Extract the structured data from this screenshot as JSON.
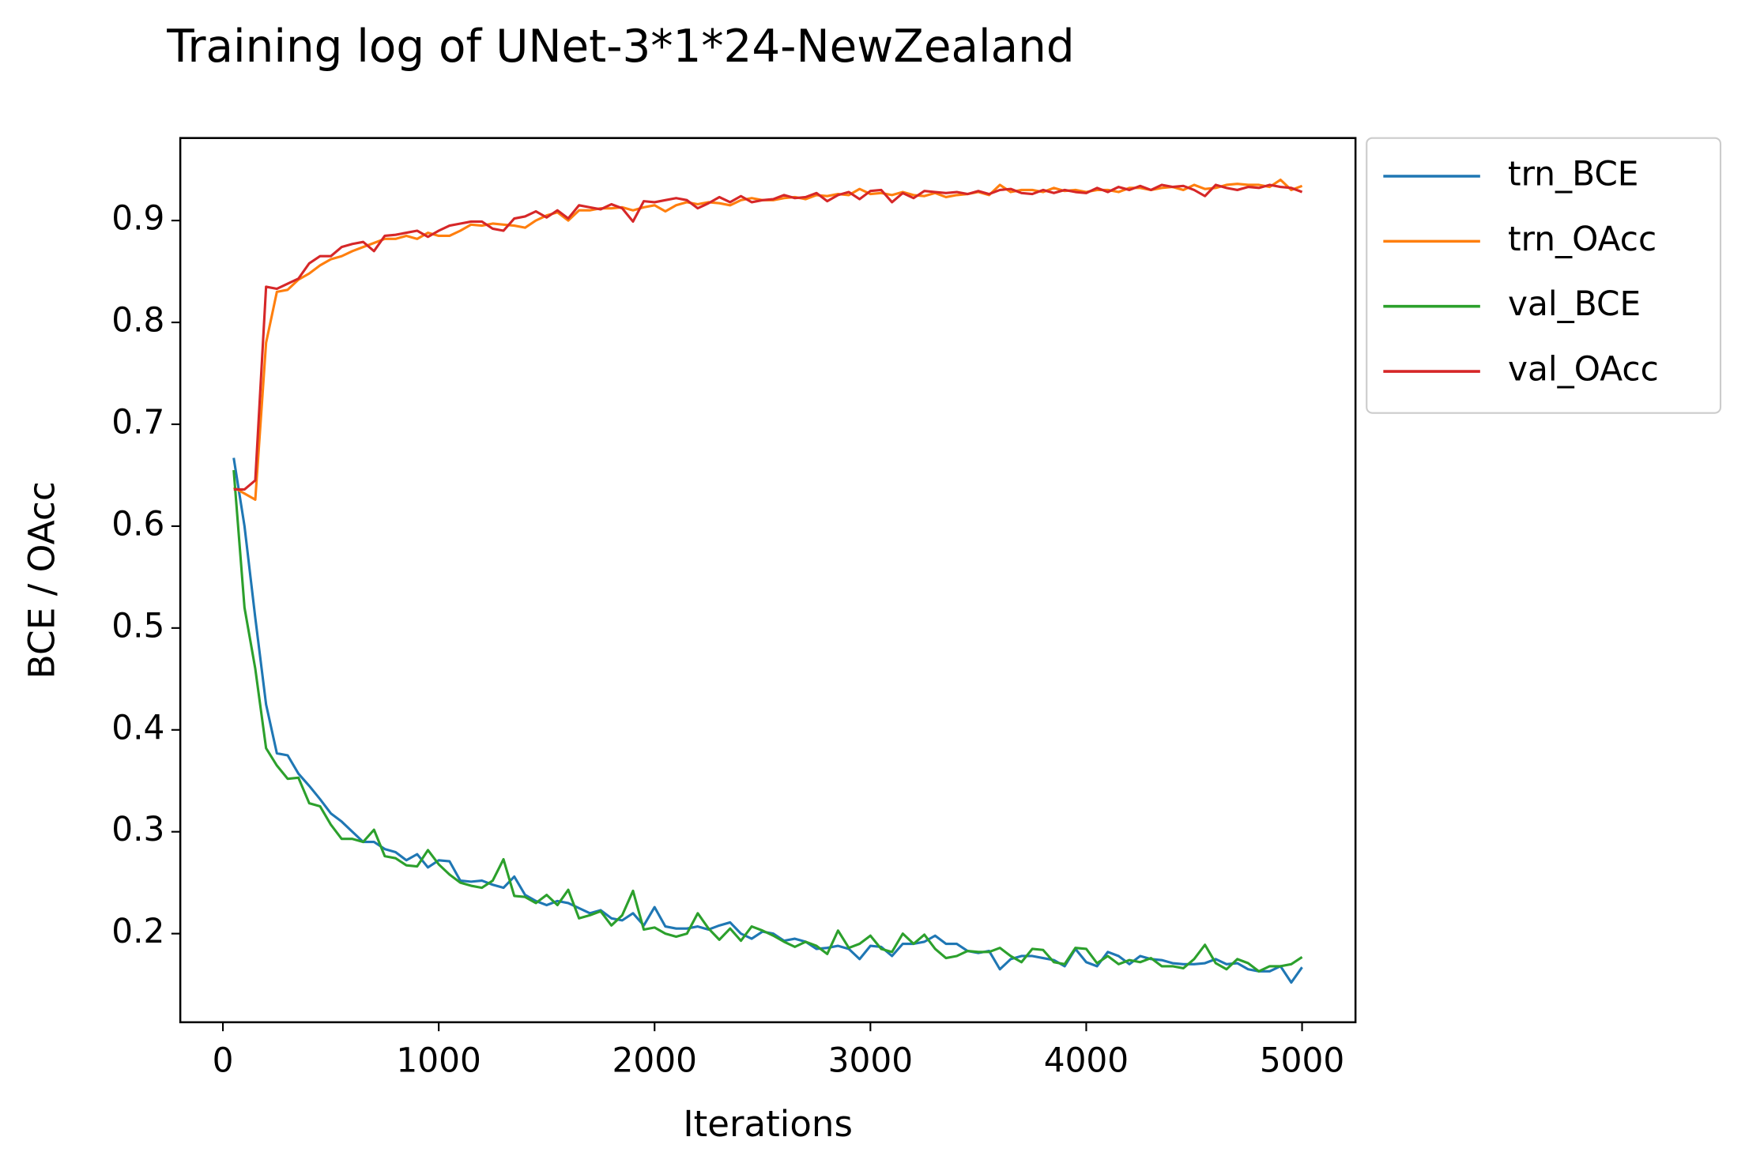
{
  "chart_data": {
    "type": "line",
    "title": "Training log of UNet-3*1*24-NewZealand",
    "xlabel": "Iterations",
    "ylabel": "BCE / OAcc",
    "x": [
      50,
      100,
      150,
      200,
      250,
      300,
      350,
      400,
      450,
      500,
      550,
      600,
      650,
      700,
      750,
      800,
      850,
      900,
      950,
      1000,
      1050,
      1100,
      1150,
      1200,
      1250,
      1300,
      1350,
      1400,
      1450,
      1500,
      1550,
      1600,
      1650,
      1700,
      1750,
      1800,
      1850,
      1900,
      1950,
      2000,
      2050,
      2100,
      2150,
      2200,
      2250,
      2300,
      2350,
      2400,
      2450,
      2500,
      2550,
      2600,
      2650,
      2700,
      2750,
      2800,
      2850,
      2900,
      2950,
      3000,
      3050,
      3100,
      3150,
      3200,
      3250,
      3300,
      3350,
      3400,
      3450,
      3500,
      3550,
      3600,
      3650,
      3700,
      3750,
      3800,
      3850,
      3900,
      3950,
      4000,
      4050,
      4100,
      4150,
      4200,
      4250,
      4300,
      4350,
      4400,
      4450,
      4500,
      4550,
      4600,
      4650,
      4700,
      4750,
      4800,
      4850,
      4900,
      4950,
      5000
    ],
    "series": [
      {
        "name": "trn_BCE",
        "color": "#1f77b4",
        "values": [
          0.667,
          0.6,
          0.51,
          0.425,
          0.377,
          0.375,
          0.357,
          0.345,
          0.332,
          0.318,
          0.31,
          0.3,
          0.29,
          0.29,
          0.283,
          0.28,
          0.272,
          0.278,
          0.265,
          0.272,
          0.271,
          0.252,
          0.251,
          0.252,
          0.248,
          0.245,
          0.256,
          0.238,
          0.232,
          0.228,
          0.232,
          0.23,
          0.225,
          0.22,
          0.223,
          0.215,
          0.213,
          0.22,
          0.208,
          0.226,
          0.207,
          0.205,
          0.205,
          0.207,
          0.204,
          0.208,
          0.211,
          0.2,
          0.195,
          0.202,
          0.2,
          0.193,
          0.195,
          0.192,
          0.185,
          0.186,
          0.188,
          0.185,
          0.175,
          0.188,
          0.187,
          0.178,
          0.19,
          0.19,
          0.192,
          0.198,
          0.19,
          0.19,
          0.183,
          0.181,
          0.183,
          0.165,
          0.175,
          0.178,
          0.178,
          0.176,
          0.174,
          0.168,
          0.185,
          0.172,
          0.168,
          0.182,
          0.178,
          0.17,
          0.178,
          0.175,
          0.174,
          0.171,
          0.17,
          0.17,
          0.171,
          0.175,
          0.17,
          0.171,
          0.165,
          0.163,
          0.163,
          0.168,
          0.152,
          0.167
        ]
      },
      {
        "name": "trn_OAcc",
        "color": "#ff7f0e",
        "values": [
          0.638,
          0.632,
          0.626,
          0.78,
          0.83,
          0.832,
          0.842,
          0.848,
          0.856,
          0.862,
          0.865,
          0.87,
          0.874,
          0.878,
          0.882,
          0.882,
          0.885,
          0.882,
          0.888,
          0.885,
          0.885,
          0.89,
          0.896,
          0.895,
          0.897,
          0.896,
          0.895,
          0.893,
          0.9,
          0.905,
          0.908,
          0.9,
          0.91,
          0.91,
          0.912,
          0.912,
          0.913,
          0.91,
          0.913,
          0.915,
          0.909,
          0.915,
          0.918,
          0.916,
          0.918,
          0.917,
          0.915,
          0.92,
          0.922,
          0.92,
          0.92,
          0.922,
          0.923,
          0.921,
          0.925,
          0.924,
          0.926,
          0.925,
          0.931,
          0.926,
          0.927,
          0.925,
          0.928,
          0.925,
          0.924,
          0.927,
          0.923,
          0.925,
          0.926,
          0.928,
          0.925,
          0.935,
          0.928,
          0.93,
          0.93,
          0.928,
          0.932,
          0.929,
          0.93,
          0.928,
          0.93,
          0.93,
          0.928,
          0.932,
          0.932,
          0.93,
          0.932,
          0.933,
          0.93,
          0.935,
          0.931,
          0.932,
          0.935,
          0.936,
          0.935,
          0.935,
          0.933,
          0.94,
          0.93,
          0.934
        ]
      },
      {
        "name": "val_BCE",
        "color": "#2ca02c",
        "values": [
          0.655,
          0.52,
          0.46,
          0.382,
          0.365,
          0.352,
          0.353,
          0.328,
          0.325,
          0.307,
          0.293,
          0.293,
          0.29,
          0.302,
          0.276,
          0.274,
          0.267,
          0.266,
          0.282,
          0.268,
          0.258,
          0.25,
          0.247,
          0.245,
          0.252,
          0.273,
          0.237,
          0.236,
          0.23,
          0.238,
          0.228,
          0.243,
          0.215,
          0.218,
          0.222,
          0.208,
          0.218,
          0.242,
          0.204,
          0.206,
          0.2,
          0.197,
          0.2,
          0.22,
          0.205,
          0.194,
          0.205,
          0.193,
          0.207,
          0.203,
          0.198,
          0.192,
          0.187,
          0.192,
          0.188,
          0.18,
          0.203,
          0.186,
          0.19,
          0.198,
          0.185,
          0.182,
          0.2,
          0.19,
          0.199,
          0.185,
          0.176,
          0.178,
          0.183,
          0.182,
          0.182,
          0.186,
          0.178,
          0.172,
          0.185,
          0.184,
          0.172,
          0.17,
          0.186,
          0.185,
          0.171,
          0.178,
          0.17,
          0.174,
          0.172,
          0.176,
          0.168,
          0.168,
          0.166,
          0.175,
          0.189,
          0.171,
          0.165,
          0.175,
          0.171,
          0.163,
          0.168,
          0.168,
          0.17,
          0.177
        ]
      },
      {
        "name": "val_OAcc",
        "color": "#d62728",
        "values": [
          0.636,
          0.636,
          0.645,
          0.835,
          0.833,
          0.838,
          0.843,
          0.858,
          0.865,
          0.865,
          0.874,
          0.877,
          0.879,
          0.87,
          0.885,
          0.886,
          0.888,
          0.89,
          0.884,
          0.89,
          0.895,
          0.897,
          0.899,
          0.899,
          0.892,
          0.89,
          0.902,
          0.904,
          0.909,
          0.903,
          0.91,
          0.902,
          0.915,
          0.913,
          0.911,
          0.916,
          0.912,
          0.899,
          0.919,
          0.918,
          0.92,
          0.922,
          0.92,
          0.912,
          0.917,
          0.923,
          0.918,
          0.924,
          0.918,
          0.92,
          0.921,
          0.925,
          0.922,
          0.923,
          0.927,
          0.919,
          0.925,
          0.928,
          0.921,
          0.929,
          0.93,
          0.918,
          0.927,
          0.922,
          0.929,
          0.928,
          0.927,
          0.928,
          0.926,
          0.929,
          0.926,
          0.93,
          0.931,
          0.927,
          0.926,
          0.93,
          0.927,
          0.93,
          0.928,
          0.927,
          0.932,
          0.928,
          0.933,
          0.93,
          0.934,
          0.93,
          0.935,
          0.933,
          0.934,
          0.93,
          0.924,
          0.935,
          0.932,
          0.93,
          0.933,
          0.932,
          0.935,
          0.933,
          0.932,
          0.928
        ]
      }
    ],
    "xlim": [
      -197.5,
      5247.5
    ],
    "xticks": [
      0,
      1000,
      2000,
      3000,
      4000,
      5000
    ],
    "ylim": [
      0.113,
      0.981
    ],
    "yticks": [
      0.2,
      0.3,
      0.4,
      0.5,
      0.6,
      0.7,
      0.8,
      0.9
    ],
    "grid": false,
    "legend": "outside upper right"
  }
}
